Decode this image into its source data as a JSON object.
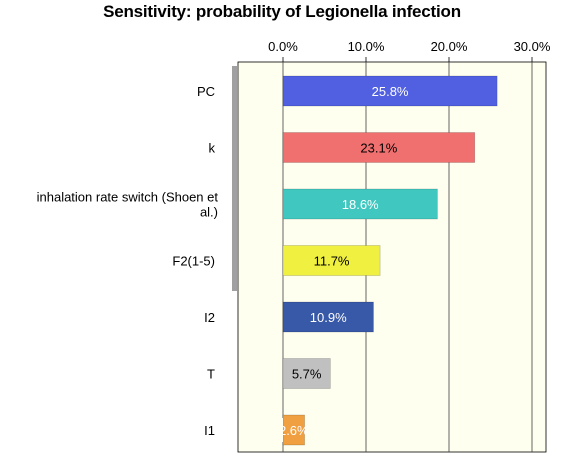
{
  "chart_data": {
    "type": "bar",
    "orientation": "horizontal",
    "title": "Sensitivity: probability of Legionella infection",
    "categories": [
      "PC",
      "k",
      "inhalation rate switch (Shoen et al.)",
      "F2(1-5)",
      "I2",
      "T",
      "I1"
    ],
    "category_label_lines": [
      [
        "PC"
      ],
      [
        "k"
      ],
      [
        "inhalation rate switch (Shoen et",
        "al.)"
      ],
      [
        "F2(1-5)"
      ],
      [
        "I2"
      ],
      [
        "T"
      ],
      [
        "I1"
      ]
    ],
    "values": [
      25.8,
      23.1,
      18.6,
      11.7,
      10.9,
      5.7,
      2.6
    ],
    "data_labels": [
      "25.8%",
      "23.1%",
      "18.6%",
      "11.7%",
      "10.9%",
      "5.7%",
      "2.6%"
    ],
    "xticks": [
      0,
      10,
      20,
      30
    ],
    "xtick_labels": [
      "0.0%",
      "10.0%",
      "20.0%",
      "30.0%"
    ],
    "xlim": [
      -5,
      31
    ],
    "grid": true,
    "legend": "none",
    "bar_colors": [
      "#5060e0",
      "#f07070",
      "#40c8c0",
      "#f0f040",
      "#3858a8",
      "#c0c0c0",
      "#f0a040"
    ],
    "label_colors": [
      "#ffffff",
      "#000000",
      "#ffffff",
      "#000000",
      "#ffffff",
      "#000000",
      "#ffffff"
    ],
    "plot_background": "#fffff0",
    "grid_color": "#404040"
  }
}
